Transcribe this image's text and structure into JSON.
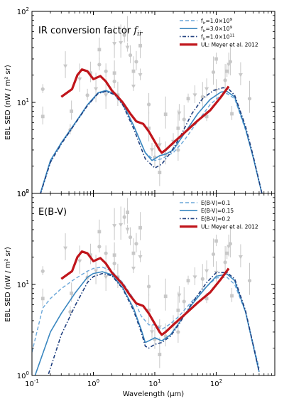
{
  "chart_data": [
    {
      "type": "line",
      "panel_title": "IR conversion factor",
      "panel_title_symbol": "f",
      "panel_title_sub": "ir",
      "ylabel": "EBL SED (nW / m² sr)",
      "xlabel": "",
      "xscale": "log",
      "yscale": "log",
      "xlim": [
        0.1,
        900
      ],
      "ylim": [
        1,
        100
      ],
      "y_ticks": [
        {
          "value": 1,
          "label": "10",
          "exp": "0"
        },
        {
          "value": 10,
          "label": "10",
          "exp": "1"
        },
        {
          "value": 100,
          "label": "10",
          "exp": "2"
        }
      ],
      "legend_position": "top-right",
      "series": [
        {
          "name": "f",
          "name_sub": "ir",
          "name_rest": "=1.0×10",
          "name_exp": "9",
          "style": "dashed",
          "color": "#6ba7d9",
          "x": [
            0.1,
            0.2,
            0.3,
            0.5,
            0.8,
            1.2,
            1.6,
            2.2,
            3,
            4.5,
            7,
            10,
            13,
            16,
            20,
            30,
            50,
            80,
            120,
            150,
            200,
            300,
            400,
            600
          ],
          "y": [
            0.5,
            2.2,
            3.5,
            5.8,
            9.2,
            12.5,
            13.2,
            12.2,
            9.5,
            5.5,
            2.8,
            2.3,
            2.4,
            2.6,
            2.8,
            3.8,
            6.2,
            9.5,
            12,
            12.5,
            11,
            5,
            2.5,
            0.8
          ]
        },
        {
          "name": "f",
          "name_sub": "ir",
          "name_rest": "=3.0×10",
          "name_exp": "9",
          "style": "solid",
          "color": "#3a87c0",
          "x": [
            0.1,
            0.2,
            0.3,
            0.5,
            0.8,
            1.2,
            1.6,
            2.2,
            3,
            4.5,
            7,
            9,
            12,
            15,
            20,
            30,
            50,
            80,
            120,
            150,
            200,
            300,
            400,
            600
          ],
          "y": [
            0.5,
            2.3,
            3.6,
            5.9,
            9.4,
            12.8,
            13.5,
            12.5,
            9.8,
            5.6,
            2.8,
            2.3,
            2.6,
            2.7,
            3,
            4.5,
            7.5,
            10.8,
            13,
            13.2,
            11.5,
            5.2,
            2.5,
            0.8
          ]
        },
        {
          "name": "f",
          "name_sub": "ir",
          "name_rest": "=1.0×10",
          "name_exp": "11",
          "style": "dotdash",
          "color": "#1f3f7f",
          "x": [
            0.1,
            0.2,
            0.3,
            0.5,
            0.8,
            1.2,
            1.6,
            2.2,
            3,
            4.5,
            7,
            10,
            13,
            18,
            25,
            40,
            60,
            90,
            130,
            160,
            200,
            300,
            400,
            600
          ],
          "y": [
            0.5,
            2.2,
            3.5,
            5.8,
            9.2,
            12.6,
            13.2,
            12.2,
            9.4,
            5.2,
            2.4,
            1.9,
            2.1,
            2.8,
            4,
            7.5,
            11,
            13.5,
            14.5,
            14,
            12,
            5.5,
            2.6,
            0.8
          ]
        },
        {
          "name": "UL: Meyer et al. 2012",
          "style": "thick",
          "color": "#c0151b",
          "x": [
            0.3,
            0.45,
            0.55,
            0.65,
            0.8,
            1.0,
            1.3,
            1.6,
            2.0,
            2.5,
            3.0,
            4.0,
            5.0,
            6.5,
            8,
            10,
            12,
            13,
            15,
            20,
            30,
            50,
            80,
            120,
            160
          ],
          "y": [
            11.5,
            14,
            20,
            23,
            22,
            18,
            19.5,
            17,
            13.5,
            11.5,
            10,
            7.5,
            6.2,
            5.8,
            4.8,
            3.7,
            3.0,
            2.8,
            3.0,
            3.6,
            4.6,
            6.3,
            8.2,
            11.5,
            15
          ]
        }
      ]
    },
    {
      "type": "line",
      "panel_title": "E(B-V)",
      "ylabel": "EBL SED (nW / m² sr)",
      "xlabel": "Wavelength (μm)",
      "xscale": "log",
      "yscale": "log",
      "xlim": [
        0.1,
        900
      ],
      "ylim": [
        1,
        100
      ],
      "y_ticks": [
        {
          "value": 1,
          "label": "10",
          "exp": "0"
        },
        {
          "value": 10,
          "label": "10",
          "exp": "1"
        },
        {
          "value": 100,
          "label": "10",
          "exp": "2"
        }
      ],
      "x_ticks": [
        {
          "value": 0.1,
          "label": "10",
          "exp": "-1"
        },
        {
          "value": 1,
          "label": "10",
          "exp": "0"
        },
        {
          "value": 10,
          "label": "10",
          "exp": "1"
        },
        {
          "value": 100,
          "label": "10",
          "exp": "2"
        }
      ],
      "legend_position": "top-right",
      "series": [
        {
          "name": "E(B-V)=0.1",
          "style": "dashed",
          "color": "#6ba7d9",
          "x": [
            0.1,
            0.15,
            0.2,
            0.3,
            0.5,
            0.8,
            1.0,
            1.4,
            2.0,
            3.0,
            4.5,
            6,
            8,
            10,
            13,
            18,
            25,
            40,
            70,
            100,
            150,
            200,
            300,
            500
          ],
          "y": [
            1.8,
            5.5,
            7,
            9,
            11.5,
            14,
            15,
            15.5,
            14,
            10.5,
            7,
            4.5,
            3.6,
            3.6,
            3.2,
            3.7,
            4.5,
            6.5,
            9.5,
            11.8,
            12,
            10,
            5,
            1.2
          ]
        },
        {
          "name": "E(B-V)=0.15",
          "style": "solid",
          "color": "#3a87c0",
          "x": [
            0.1,
            0.2,
            0.3,
            0.5,
            0.8,
            1.0,
            1.4,
            2.0,
            3.0,
            4.5,
            6,
            7,
            8,
            10,
            13,
            18,
            25,
            40,
            70,
            100,
            150,
            200,
            300,
            500
          ],
          "y": [
            0.8,
            3,
            4.8,
            8,
            12,
            13.2,
            13.8,
            12.8,
            9.2,
            5.5,
            3.2,
            2.3,
            2.4,
            2.6,
            2.4,
            2.8,
            3.8,
            6,
            9.5,
            12.3,
            13,
            11,
            5,
            1.1
          ]
        },
        {
          "name": "E(B-V)=0.2",
          "style": "dotdash",
          "color": "#1f3f7f",
          "x": [
            0.1,
            0.2,
            0.3,
            0.5,
            0.8,
            1.0,
            1.4,
            2.0,
            3.0,
            4.5,
            6,
            7,
            8,
            10,
            13,
            18,
            25,
            40,
            70,
            100,
            150,
            200,
            300,
            500
          ],
          "y": [
            0.3,
            1.2,
            2.8,
            5.8,
            10.5,
            12.2,
            13.2,
            12.5,
            9.0,
            5.2,
            3.0,
            2.1,
            2.0,
            2.2,
            2.3,
            2.7,
            3.7,
            6.2,
            10.5,
            13.5,
            13.5,
            11.5,
            5.2,
            1.1
          ]
        },
        {
          "name": "UL: Meyer et al. 2012",
          "style": "thick",
          "color": "#c0151b",
          "x": [
            0.3,
            0.45,
            0.55,
            0.65,
            0.8,
            1.0,
            1.3,
            1.6,
            2.0,
            2.5,
            3.0,
            4.0,
            5.0,
            6.5,
            8,
            10,
            12,
            13,
            15,
            20,
            30,
            50,
            80,
            120,
            160
          ],
          "y": [
            11.5,
            14,
            20,
            23,
            22,
            18,
            19.5,
            17,
            13.5,
            11.5,
            10,
            7.5,
            6.2,
            5.8,
            4.8,
            3.7,
            3.0,
            2.8,
            3.0,
            3.6,
            4.6,
            6.3,
            8.2,
            11.5,
            15
          ]
        }
      ]
    }
  ],
  "observational_points": {
    "color": "#c8c8c8",
    "x": [
      0.15,
      0.15,
      0.35,
      0.42,
      0.44,
      0.6,
      0.8,
      0.9,
      1.1,
      1.25,
      1.25,
      1.6,
      1.6,
      2.2,
      2.2,
      2.2,
      2.5,
      2.8,
      3.2,
      3.6,
      3.6,
      4.0,
      4.5,
      4.5,
      5.0,
      5.8,
      5.8,
      8,
      8,
      9,
      10,
      12,
      12,
      15,
      15,
      20,
      24,
      24,
      25,
      30,
      35,
      45,
      60,
      70,
      70,
      90,
      100,
      100,
      140,
      150,
      160,
      170,
      180,
      250,
      350
    ],
    "y": [
      14,
      7,
      25,
      5,
      8,
      18,
      12,
      21,
      14,
      26,
      38,
      12,
      22,
      21,
      44,
      17,
      12,
      45,
      55,
      62,
      40,
      33,
      22,
      15,
      28,
      42,
      20,
      9.5,
      5.2,
      3.0,
      2.5,
      1.7,
      3.4,
      2.7,
      7.4,
      3.7,
      3.0,
      5.2,
      7.6,
      6.5,
      11,
      12,
      11.5,
      7,
      14,
      21.5,
      30,
      13.5,
      17.5,
      22,
      26,
      28,
      7.5,
      20,
      11
    ]
  }
}
